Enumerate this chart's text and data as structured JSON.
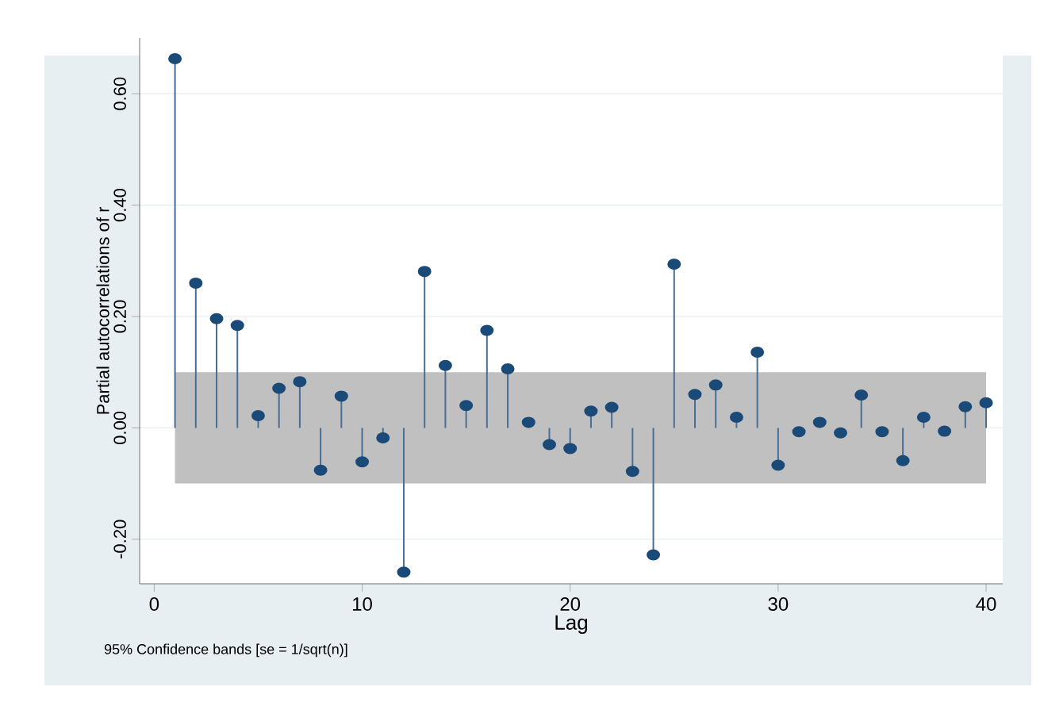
{
  "chart_data": {
    "type": "lollipop",
    "xlabel": "Lag",
    "ylabel": "Partial autocorrelations of r",
    "x": [
      1,
      2,
      3,
      4,
      5,
      6,
      7,
      8,
      9,
      10,
      11,
      12,
      13,
      14,
      15,
      16,
      17,
      18,
      19,
      20,
      21,
      22,
      23,
      24,
      25,
      26,
      27,
      28,
      29,
      30,
      31,
      32,
      33,
      34,
      35,
      36,
      37,
      38,
      39,
      40
    ],
    "series": [
      {
        "color": "#1a4a78",
        "values": [
          0.663,
          0.26,
          0.196,
          0.184,
          0.022,
          0.071,
          0.083,
          -0.076,
          0.057,
          -0.061,
          -0.018,
          -0.259,
          0.281,
          0.112,
          0.04,
          0.175,
          0.106,
          0.01,
          -0.03,
          -0.037,
          0.03,
          0.037,
          -0.078,
          -0.228,
          0.294,
          0.06,
          0.077,
          0.019,
          0.136,
          -0.067,
          -0.007,
          0.01,
          -0.009,
          0.059,
          -0.007,
          -0.059,
          0.019,
          -0.006,
          0.038,
          0.045
        ]
      }
    ],
    "bands": [
      {
        "axis": "y",
        "from": -0.1,
        "to": 0.1,
        "color": "#c0c0c0"
      }
    ],
    "xlim": [
      -0.7,
      40.8
    ],
    "ylim": [
      -0.28,
      0.7
    ],
    "xticks": [
      0,
      10,
      20,
      30,
      40
    ],
    "yticks": [
      {
        "value": -0.2,
        "label": "-0.20"
      },
      {
        "value": 0,
        "label": "0.00"
      },
      {
        "value": 0.2,
        "label": "0.20"
      },
      {
        "value": 0.4,
        "label": "0.40"
      },
      {
        "value": 0.6,
        "label": "0.60"
      }
    ],
    "grid": "y",
    "marker": "circle",
    "annotations": [
      "95% Confidence bands [se = 1/sqrt(n)]"
    ]
  }
}
